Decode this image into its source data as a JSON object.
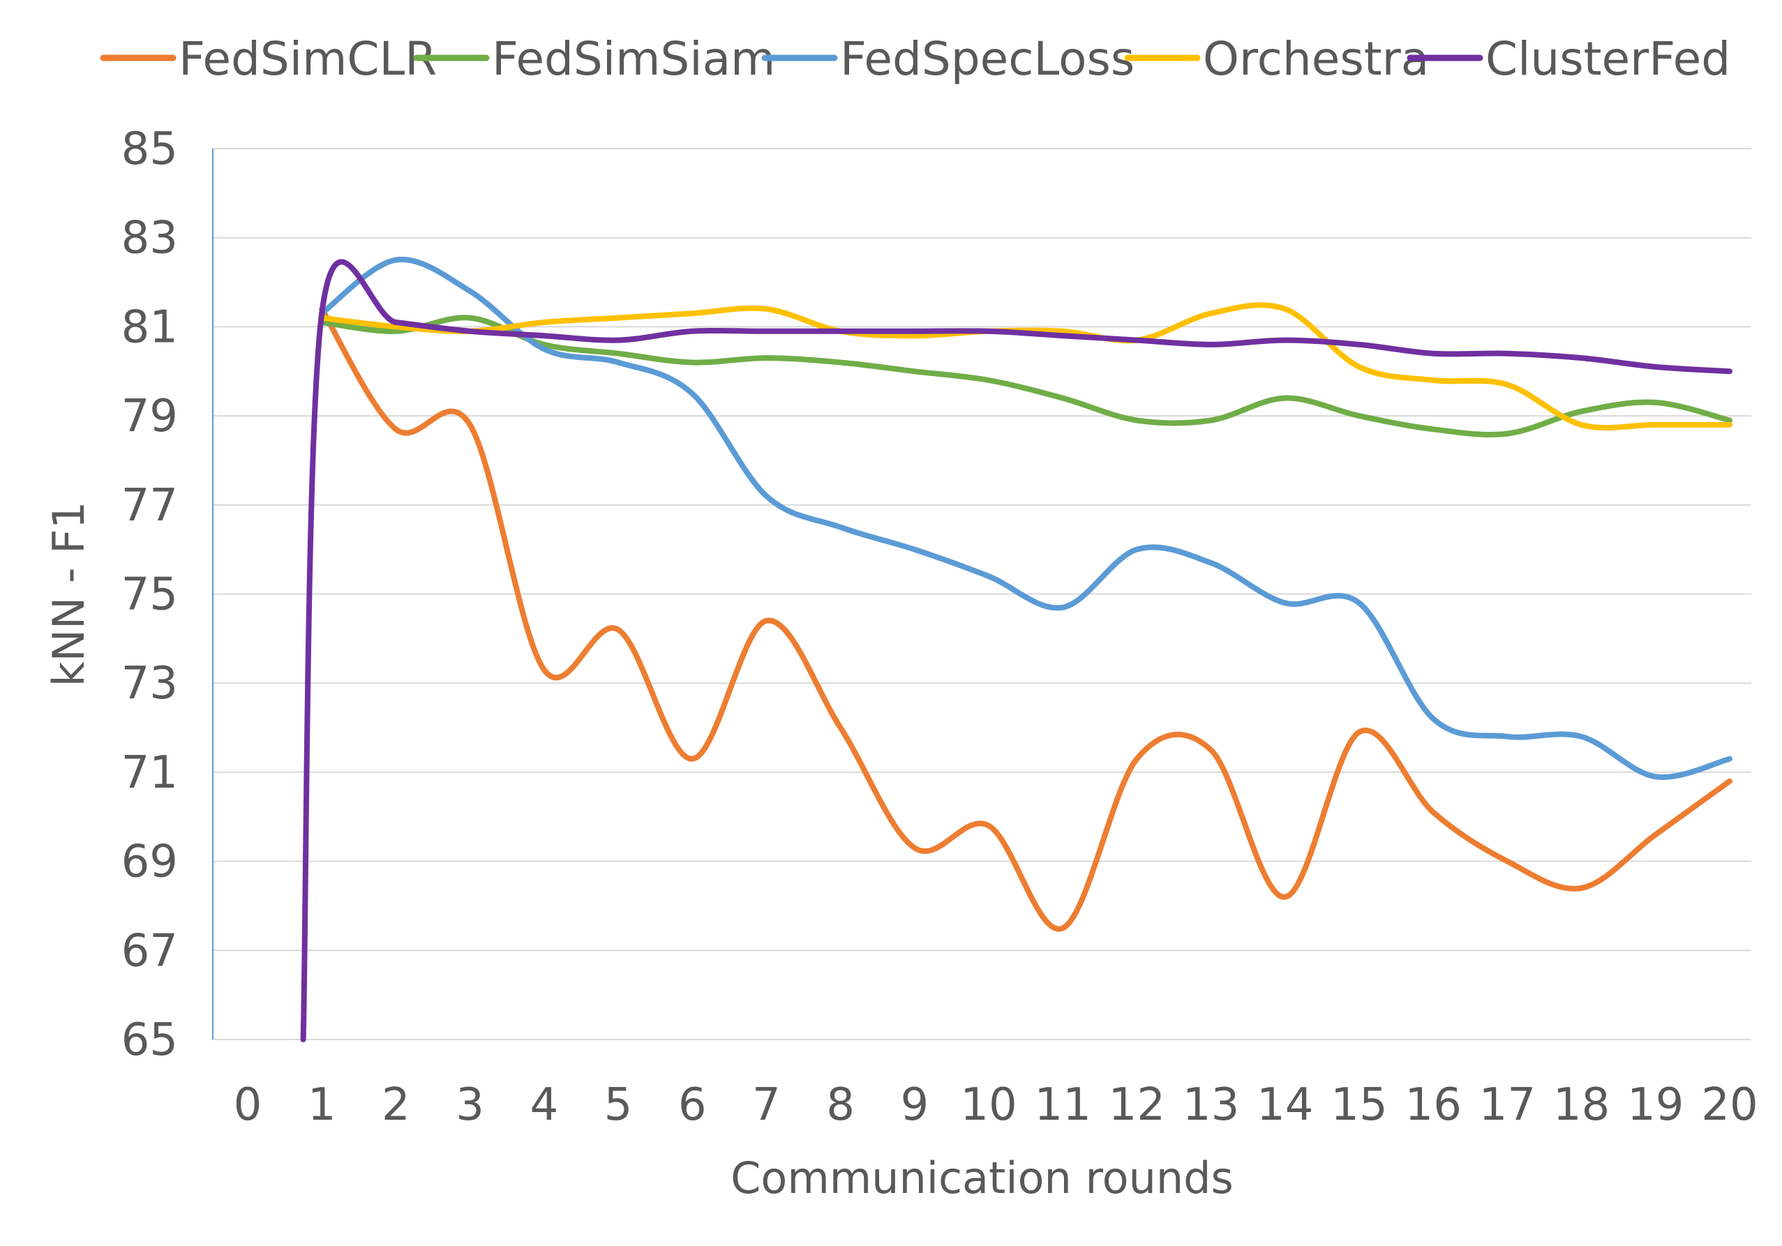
{
  "chart_data": {
    "type": "line",
    "title": "",
    "xlabel": "Communication rounds",
    "ylabel": "kNN - F1",
    "ylim": [
      65,
      85
    ],
    "yticks": [
      65,
      67,
      69,
      71,
      73,
      75,
      77,
      79,
      81,
      83,
      85
    ],
    "x_tick_labels": [
      "0",
      "1",
      "2",
      "3",
      "4",
      "5",
      "6",
      "7",
      "8",
      "9",
      "10",
      "11",
      "12",
      "13",
      "14",
      "15",
      "16",
      "17",
      "18",
      "19",
      "20"
    ],
    "grid": "horizontal",
    "legend_position": "top",
    "smoothed": true,
    "series": [
      {
        "name": "FedSimCLR",
        "color": "#ed7d31",
        "x": [
          1,
          2,
          3,
          4,
          5,
          6,
          7,
          8,
          9,
          10,
          11,
          12,
          13,
          14,
          15,
          16,
          17,
          18,
          19,
          20
        ],
        "values": [
          81.4,
          78.7,
          78.8,
          73.3,
          74.2,
          71.3,
          74.4,
          72.0,
          69.3,
          69.8,
          67.5,
          71.3,
          71.5,
          68.2,
          71.9,
          70.1,
          69.0,
          68.4,
          69.6,
          70.8
        ]
      },
      {
        "name": "FedSimSiam",
        "color": "#70ad47",
        "x": [
          1,
          2,
          3,
          4,
          5,
          6,
          7,
          8,
          9,
          10,
          11,
          12,
          13,
          14,
          15,
          16,
          17,
          18,
          19,
          20
        ],
        "values": [
          81.1,
          80.9,
          81.2,
          80.6,
          80.4,
          80.2,
          80.3,
          80.2,
          80.0,
          79.8,
          79.4,
          78.9,
          78.9,
          79.4,
          79.0,
          78.7,
          78.6,
          79.1,
          79.3,
          78.9
        ]
      },
      {
        "name": "FedSpecLoss",
        "color": "#5b9bd5",
        "x": [
          1,
          2,
          3,
          4,
          5,
          6,
          7,
          8,
          9,
          10,
          11,
          12,
          13,
          14,
          15,
          16,
          17,
          18,
          19,
          20
        ],
        "values": [
          81.3,
          82.5,
          81.8,
          80.5,
          80.2,
          79.5,
          77.2,
          76.5,
          76.0,
          75.4,
          74.7,
          76.0,
          75.7,
          74.8,
          74.8,
          72.2,
          71.8,
          71.8,
          70.9,
          71.3
        ]
      },
      {
        "name": "Orchestra",
        "color": "#ffc000",
        "x": [
          1,
          2,
          3,
          4,
          5,
          6,
          7,
          8,
          9,
          10,
          11,
          12,
          13,
          14,
          15,
          16,
          17,
          18,
          19,
          20
        ],
        "values": [
          81.2,
          81.0,
          80.9,
          81.1,
          81.2,
          81.3,
          81.4,
          80.9,
          80.8,
          80.9,
          80.9,
          80.7,
          81.3,
          81.4,
          80.1,
          79.8,
          79.7,
          78.8,
          78.8,
          78.8
        ]
      },
      {
        "name": "ClusterFed",
        "color": "#7030a0",
        "x": [
          0.75,
          1,
          2,
          3,
          4,
          5,
          6,
          7,
          8,
          9,
          10,
          11,
          12,
          13,
          14,
          15,
          16,
          17,
          18,
          19,
          20
        ],
        "values": [
          65.0,
          81.3,
          81.1,
          80.9,
          80.8,
          80.7,
          80.9,
          80.9,
          80.9,
          80.9,
          80.9,
          80.8,
          80.7,
          80.6,
          80.7,
          80.6,
          80.4,
          80.4,
          80.3,
          80.1,
          80.0
        ]
      }
    ]
  }
}
